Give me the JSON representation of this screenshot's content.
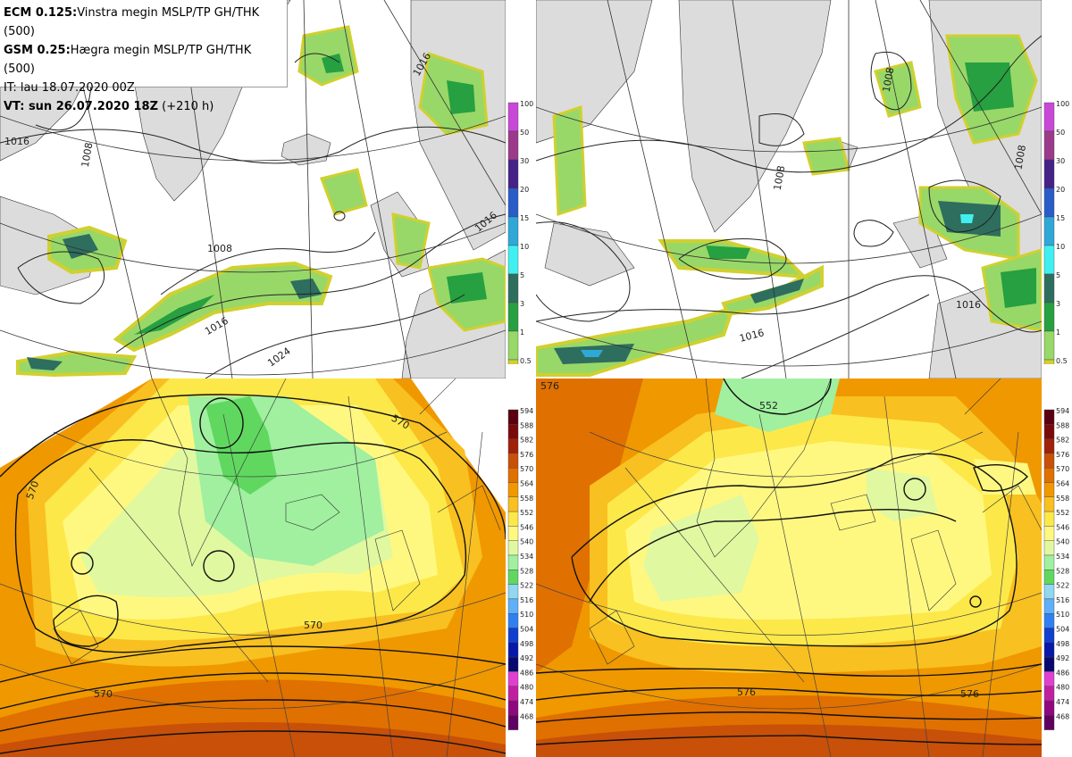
{
  "info": {
    "line1_bold": "ECM 0.125:",
    "line1_text": "Vinstra megin MSLP/TP GH/THK (500)",
    "line2_bold": "GSM 0.25:",
    "line2_text": "Hægra megin MSLP/TP GH/THK (500)",
    "line3_text": "IT: lau 18.07.2020 00Z",
    "line4_bold": "VT: sun 26.07.2020 18Z",
    "line4_text": " (+210 h)"
  },
  "precip_colorbar": {
    "labels": [
      "100",
      "50",
      "30",
      "20",
      "15",
      "10",
      "5",
      "3",
      "1",
      "0.5"
    ],
    "colors": [
      "#c848d8",
      "#9c3a8c",
      "#442288",
      "#2a5cc8",
      "#2fa8d8",
      "#40f0f0",
      "#2e6e5e",
      "#26a040",
      "#98d868",
      "#d0d030"
    ]
  },
  "gh_colorbar": {
    "labels": [
      "594",
      "588",
      "582",
      "576",
      "570",
      "564",
      "558",
      "552",
      "546",
      "540",
      "534",
      "528",
      "522",
      "516",
      "510",
      "504",
      "498",
      "492",
      "486",
      "480",
      "474",
      "468"
    ],
    "colors": [
      "#5a0010",
      "#7a0a0a",
      "#a02008",
      "#c85008",
      "#e07000",
      "#f09800",
      "#f8c020",
      "#fde84a",
      "#fff880",
      "#e0f8a0",
      "#a0f0a0",
      "#60d860",
      "#90d8f0",
      "#60b0f8",
      "#3080f0",
      "#1040d0",
      "#0818a8",
      "#080870",
      "#e040d0",
      "#c020a0",
      "#900880",
      "#600060"
    ]
  },
  "panels": {
    "tl": {
      "isobar_labels": [
        "1016",
        "1016",
        "1008",
        "1016",
        "1024",
        "1008"
      ]
    },
    "tr": {
      "isobar_labels": [
        "1008",
        "1008",
        "1008",
        "1016",
        "1016"
      ]
    },
    "bl": {
      "height_labels": [
        "570",
        "570",
        "570",
        "570"
      ]
    },
    "br": {
      "height_labels": [
        "576",
        "552",
        "576",
        "576"
      ]
    }
  }
}
